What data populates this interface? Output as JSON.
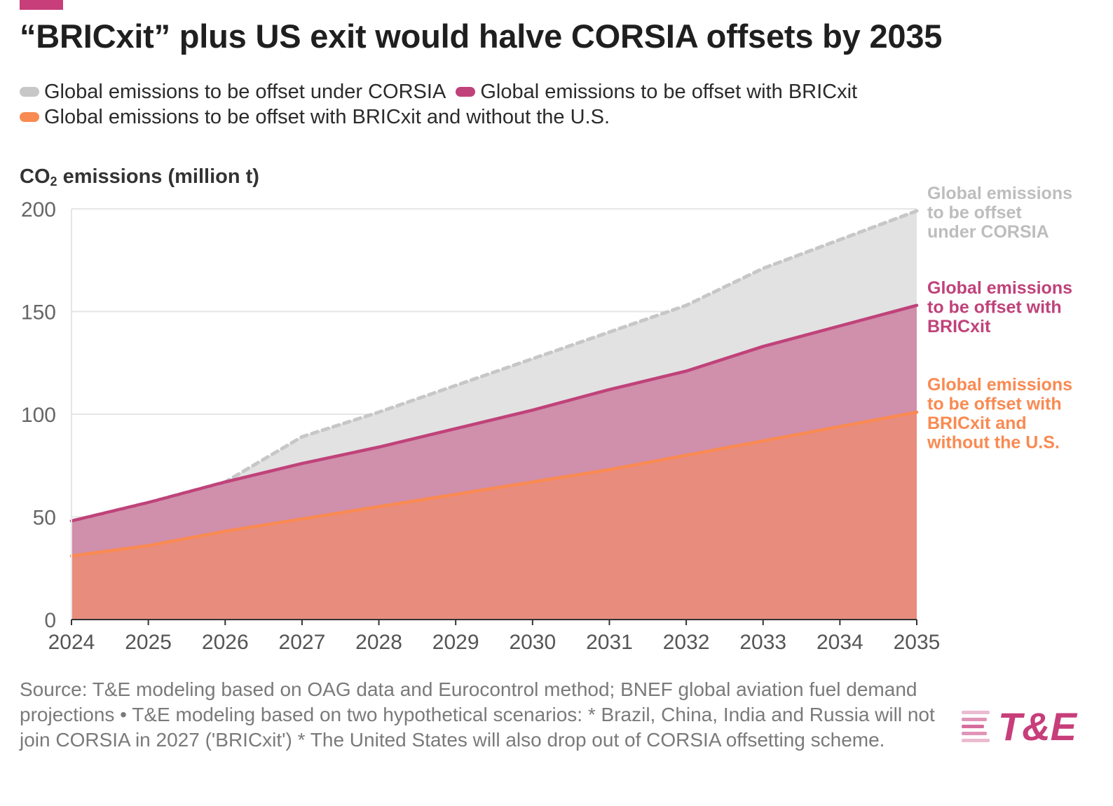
{
  "title": "“BRICxit” plus US exit would halve CORSIA offsets by 2035",
  "colors": {
    "accent": "#c73e7b",
    "corsia": "#c7c7c7",
    "bricxit": "#c0427a",
    "bricxit_no_us": "#f98a52",
    "corsia_area": "#e2e2e2",
    "bricxit_area": "#d08fab",
    "bricxit_no_us_area": "#e88c7e"
  },
  "legend": [
    {
      "label": "Global emissions to be offset under CORSIA",
      "color": "#c7c7c7"
    },
    {
      "label": "Global emissions to be offset with BRICxit",
      "color": "#c0427a"
    },
    {
      "label": "Global emissions to be offset with BRICxit and without the U.S.",
      "color": "#f98a52"
    }
  ],
  "ylabel_main": "CO",
  "ylabel_sub": "2",
  "ylabel_rest": " emissions (million t)",
  "chart_data": {
    "type": "area",
    "x": [
      "2024",
      "2025",
      "2026",
      "2027",
      "2028",
      "2029",
      "2030",
      "2031",
      "2032",
      "2033",
      "2034",
      "2035"
    ],
    "ylim": [
      0,
      200
    ],
    "yticks": [
      "0",
      "50",
      "100",
      "150",
      "200"
    ],
    "grid": true,
    "series": [
      {
        "name": "Global emissions to be offset under CORSIA",
        "values": [
          48,
          57,
          67,
          89,
          101,
          114,
          127,
          140,
          153,
          171,
          185,
          199
        ],
        "line_style": "dashed",
        "color": "#c7c7c7",
        "fill": "#e2e2e2",
        "end_label": [
          "Global emissions",
          "to be offset",
          "under CORSIA"
        ]
      },
      {
        "name": "Global emissions to be offset with BRICxit",
        "values": [
          48,
          57,
          67,
          76,
          84,
          93,
          102,
          112,
          121,
          133,
          143,
          153
        ],
        "line_style": "solid",
        "color": "#c0427a",
        "fill": "#d08fab",
        "end_label": [
          "Global emissions",
          "to be offset with",
          "BRICxit"
        ]
      },
      {
        "name": "Global emissions to be offset with BRICxit and without the U.S.",
        "values": [
          31,
          36,
          43,
          49,
          55,
          61,
          67,
          73,
          80,
          87,
          94,
          101
        ],
        "line_style": "solid",
        "color": "#f98a52",
        "fill": "#e88c7e",
        "end_label": [
          "Global emissions",
          "to be offset with",
          "BRICxit and",
          "without the U.S."
        ]
      }
    ]
  },
  "source": "Source: T&E modeling based on OAG data and Eurocontrol method; BNEF global aviation fuel demand projections • T&E modeling based on two hypothetical scenarios: * Brazil, China, India and Russia will not join CORSIA in 2027 ('BRICxit') * The United States will also drop out of CORSIA offsetting scheme.",
  "logo_text": "T&E"
}
